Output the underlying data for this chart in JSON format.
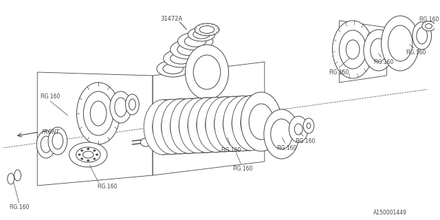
{
  "bg_color": "#ffffff",
  "line_color": "#444444",
  "text_color": "#444444",
  "fig_label": "FIG.160",
  "part_label": "31472A",
  "diagram_id": "A150001449",
  "front_label": "FRONT"
}
